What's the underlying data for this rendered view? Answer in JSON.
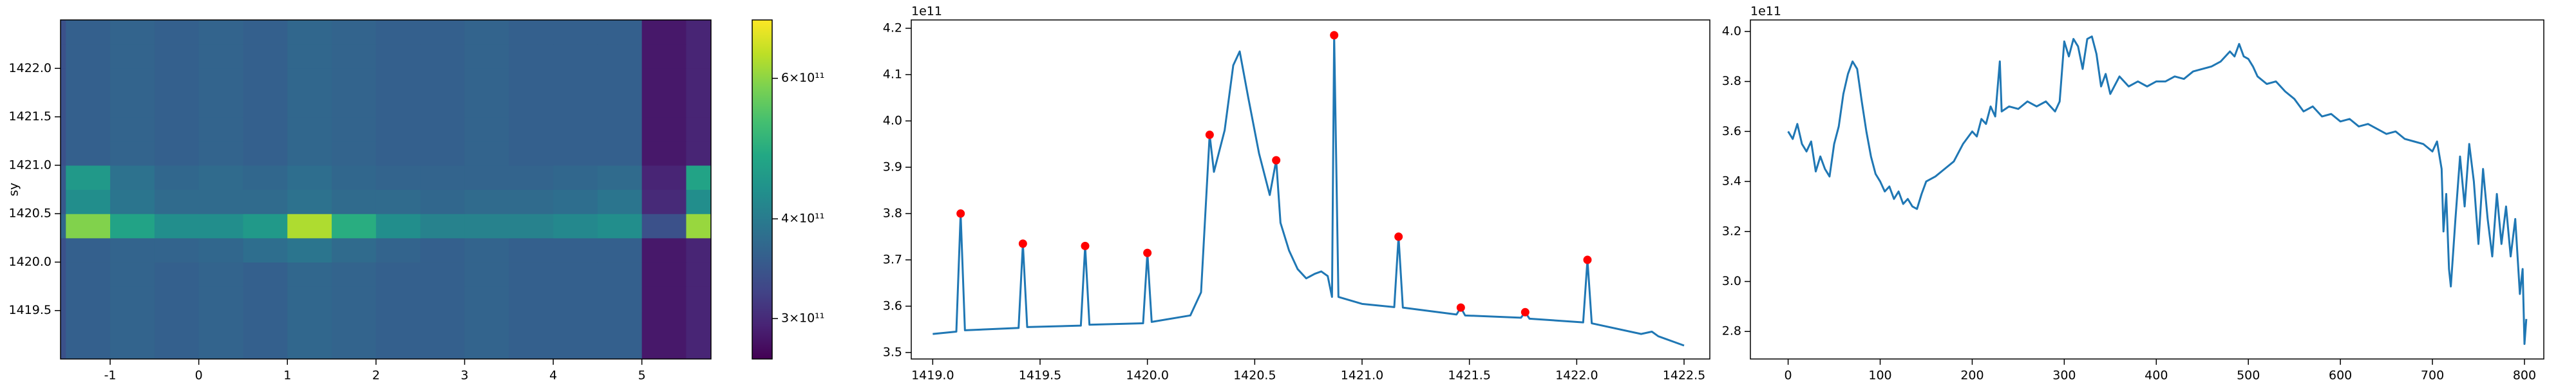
{
  "chart_data": [
    {
      "type": "heatmap",
      "ylabel": "sy",
      "xlim": [
        -1.56,
        5.78
      ],
      "xticks": [
        -1,
        0,
        1,
        2,
        3,
        4,
        5
      ],
      "ylim": [
        1419.0,
        1422.5
      ],
      "yticks": [
        1419.5,
        {
          "value": 1420,
          "label": "1420.0"
        },
        1420.5,
        {
          "value": 1421,
          "label": "1421.0"
        },
        1421.5,
        {
          "value": 1422,
          "label": "1422.0"
        }
      ],
      "colormap": "viridis",
      "x": [
        -1.75,
        -1.25,
        -0.75,
        -0.25,
        0.25,
        0.75,
        1.25,
        1.75,
        2.25,
        2.75,
        3.25,
        3.75,
        4.25,
        4.75,
        5.25,
        5.75
      ],
      "y": [
        1419.125,
        1419.375,
        1419.625,
        1419.875,
        1420.125,
        1420.375,
        1420.625,
        1420.875,
        1421.125,
        1421.375,
        1421.625,
        1421.875,
        1422.125,
        1422.375
      ],
      "z": [
        [
          340000000000.0,
          360000000000.0,
          365000000000.0,
          360000000000.0,
          365000000000.0,
          360000000000.0,
          370000000000.0,
          365000000000.0,
          360000000000.0,
          360000000000.0,
          365000000000.0,
          360000000000.0,
          360000000000.0,
          360000000000.0,
          285000000000.0,
          295000000000.0
        ],
        [
          340000000000.0,
          360000000000.0,
          365000000000.0,
          360000000000.0,
          365000000000.0,
          360000000000.0,
          370000000000.0,
          365000000000.0,
          360000000000.0,
          360000000000.0,
          365000000000.0,
          360000000000.0,
          360000000000.0,
          360000000000.0,
          285000000000.0,
          295000000000.0
        ],
        [
          340000000000.0,
          360000000000.0,
          365000000000.0,
          360000000000.0,
          365000000000.0,
          360000000000.0,
          370000000000.0,
          365000000000.0,
          360000000000.0,
          360000000000.0,
          365000000000.0,
          360000000000.0,
          360000000000.0,
          360000000000.0,
          285000000000.0,
          295000000000.0
        ],
        [
          340000000000.0,
          360000000000.0,
          365000000000.0,
          360000000000.0,
          365000000000.0,
          360000000000.0,
          370000000000.0,
          365000000000.0,
          360000000000.0,
          360000000000.0,
          365000000000.0,
          360000000000.0,
          360000000000.0,
          360000000000.0,
          285000000000.0,
          295000000000.0
        ],
        [
          340000000000.0,
          360000000000.0,
          365000000000.0,
          365000000000.0,
          370000000000.0,
          380000000000.0,
          390000000000.0,
          375000000000.0,
          365000000000.0,
          360000000000.0,
          365000000000.0,
          360000000000.0,
          360000000000.0,
          360000000000.0,
          285000000000.0,
          295000000000.0
        ],
        [
          370000000000.0,
          590000000000.0,
          470000000000.0,
          430000000000.0,
          430000000000.0,
          450000000000.0,
          630000000000.0,
          490000000000.0,
          430000000000.0,
          410000000000.0,
          410000000000.0,
          410000000000.0,
          420000000000.0,
          430000000000.0,
          340000000000.0,
          610000000000.0
        ],
        [
          350000000000.0,
          430000000000.0,
          390000000000.0,
          375000000000.0,
          375000000000.0,
          375000000000.0,
          385000000000.0,
          375000000000.0,
          375000000000.0,
          370000000000.0,
          375000000000.0,
          375000000000.0,
          380000000000.0,
          390000000000.0,
          300000000000.0,
          430000000000.0
        ],
        [
          350000000000.0,
          450000000000.0,
          385000000000.0,
          370000000000.0,
          375000000000.0,
          370000000000.0,
          380000000000.0,
          370000000000.0,
          365000000000.0,
          365000000000.0,
          365000000000.0,
          365000000000.0,
          370000000000.0,
          375000000000.0,
          295000000000.0,
          470000000000.0
        ],
        [
          340000000000.0,
          360000000000.0,
          365000000000.0,
          360000000000.0,
          365000000000.0,
          360000000000.0,
          370000000000.0,
          365000000000.0,
          360000000000.0,
          360000000000.0,
          365000000000.0,
          360000000000.0,
          360000000000.0,
          360000000000.0,
          285000000000.0,
          295000000000.0
        ],
        [
          340000000000.0,
          360000000000.0,
          365000000000.0,
          360000000000.0,
          365000000000.0,
          360000000000.0,
          370000000000.0,
          365000000000.0,
          360000000000.0,
          360000000000.0,
          365000000000.0,
          360000000000.0,
          360000000000.0,
          360000000000.0,
          285000000000.0,
          295000000000.0
        ],
        [
          340000000000.0,
          360000000000.0,
          365000000000.0,
          360000000000.0,
          365000000000.0,
          360000000000.0,
          370000000000.0,
          365000000000.0,
          360000000000.0,
          360000000000.0,
          365000000000.0,
          360000000000.0,
          360000000000.0,
          360000000000.0,
          285000000000.0,
          295000000000.0
        ],
        [
          340000000000.0,
          360000000000.0,
          365000000000.0,
          360000000000.0,
          365000000000.0,
          360000000000.0,
          370000000000.0,
          365000000000.0,
          360000000000.0,
          360000000000.0,
          365000000000.0,
          360000000000.0,
          360000000000.0,
          360000000000.0,
          285000000000.0,
          295000000000.0
        ],
        [
          340000000000.0,
          360000000000.0,
          365000000000.0,
          360000000000.0,
          365000000000.0,
          360000000000.0,
          370000000000.0,
          365000000000.0,
          360000000000.0,
          360000000000.0,
          365000000000.0,
          360000000000.0,
          360000000000.0,
          360000000000.0,
          285000000000.0,
          295000000000.0
        ],
        [
          340000000000.0,
          360000000000.0,
          365000000000.0,
          360000000000.0,
          365000000000.0,
          360000000000.0,
          370000000000.0,
          365000000000.0,
          360000000000.0,
          360000000000.0,
          365000000000.0,
          360000000000.0,
          360000000000.0,
          360000000000.0,
          285000000000.0,
          295000000000.0
        ]
      ],
      "colorbar": {
        "scale": "log",
        "clim": [
          267000000000.0,
          710000000000.0
        ],
        "ticks": [
          {
            "value": 300000000000.0,
            "label": "3×10¹¹"
          },
          {
            "value": 400000000000.0,
            "label": "4×10¹¹"
          },
          {
            "value": 600000000000.0,
            "label": "6×10¹¹"
          }
        ]
      }
    },
    {
      "type": "line",
      "offset_text": "1e11",
      "xlim": [
        1418.9,
        1422.62
      ],
      "xticks": [
        {
          "value": 1419,
          "label": "1419.0"
        },
        1419.5,
        {
          "value": 1420,
          "label": "1420.0"
        },
        1420.5,
        {
          "value": 1421,
          "label": "1421.0"
        },
        1421.5,
        {
          "value": 1422,
          "label": "1422.0"
        },
        1422.5
      ],
      "ylim": [
        3.486,
        4.218
      ],
      "yticks": [
        3.5,
        3.6,
        3.7,
        3.8,
        3.9,
        {
          "value": 4,
          "label": "4.0"
        },
        4.1,
        4.2
      ],
      "x": [
        1419.0,
        1419.11,
        1419.13,
        1419.15,
        1419.4,
        1419.42,
        1419.44,
        1419.69,
        1419.71,
        1419.73,
        1419.98,
        1420.0,
        1420.02,
        1420.2,
        1420.25,
        1420.29,
        1420.31,
        1420.36,
        1420.4,
        1420.43,
        1420.47,
        1420.52,
        1420.57,
        1420.6,
        1420.62,
        1420.66,
        1420.7,
        1420.74,
        1420.78,
        1420.81,
        1420.84,
        1420.86,
        1420.87,
        1420.89,
        1421.0,
        1421.15,
        1421.17,
        1421.19,
        1421.44,
        1421.46,
        1421.48,
        1421.74,
        1421.76,
        1421.78,
        1422.03,
        1422.05,
        1422.07,
        1422.3,
        1422.35,
        1422.38,
        1422.5
      ],
      "series": [
        {
          "color": "#1f77b4",
          "values": [
            3.54,
            3.545,
            3.8,
            3.548,
            3.553,
            3.735,
            3.555,
            3.558,
            3.73,
            3.56,
            3.563,
            3.715,
            3.566,
            3.58,
            3.63,
            3.97,
            3.89,
            3.98,
            4.12,
            4.15,
            4.05,
            3.93,
            3.84,
            3.915,
            3.78,
            3.72,
            3.68,
            3.66,
            3.67,
            3.675,
            3.665,
            3.62,
            4.185,
            3.62,
            3.605,
            3.598,
            3.75,
            3.597,
            3.582,
            3.597,
            3.58,
            3.575,
            3.587,
            3.573,
            3.565,
            3.7,
            3.563,
            3.54,
            3.545,
            3.535,
            3.515
          ]
        }
      ],
      "markers": {
        "color": "#ff0000",
        "x": [
          1419.13,
          1419.42,
          1419.71,
          1420.0,
          1420.29,
          1420.6,
          1420.87,
          1421.17,
          1421.46,
          1421.76,
          1422.05
        ],
        "values": [
          3.8,
          3.735,
          3.73,
          3.715,
          3.97,
          3.915,
          4.185,
          3.75,
          3.597,
          3.587,
          3.7
        ]
      }
    },
    {
      "type": "line",
      "offset_text": "1e11",
      "xlim": [
        -41,
        821
      ],
      "xticks": [
        0,
        100,
        200,
        300,
        400,
        500,
        600,
        700,
        800
      ],
      "ylim": [
        2.69,
        4.046
      ],
      "yticks": [
        2.8,
        {
          "value": 3,
          "label": "3.0"
        },
        3.2,
        3.4,
        3.6,
        3.8,
        {
          "value": 4,
          "label": "4.0"
        }
      ],
      "x": [
        0,
        5,
        10,
        15,
        20,
        25,
        30,
        35,
        40,
        45,
        50,
        55,
        60,
        65,
        70,
        75,
        80,
        85,
        90,
        95,
        100,
        105,
        110,
        115,
        120,
        125,
        130,
        135,
        140,
        145,
        150,
        160,
        170,
        180,
        190,
        200,
        205,
        210,
        215,
        220,
        225,
        230,
        232,
        240,
        250,
        260,
        270,
        280,
        290,
        295,
        300,
        305,
        310,
        315,
        320,
        325,
        330,
        335,
        340,
        345,
        350,
        360,
        370,
        380,
        390,
        400,
        410,
        420,
        430,
        440,
        450,
        460,
        470,
        480,
        485,
        490,
        495,
        500,
        505,
        510,
        520,
        530,
        540,
        550,
        560,
        570,
        580,
        590,
        600,
        610,
        620,
        630,
        640,
        650,
        660,
        670,
        680,
        690,
        700,
        705,
        710,
        712,
        715,
        718,
        720,
        725,
        730,
        735,
        740,
        745,
        750,
        755,
        760,
        765,
        770,
        775,
        780,
        785,
        790,
        795,
        798,
        800,
        802
      ],
      "series": [
        {
          "color": "#1f77b4",
          "values": [
            3.6,
            3.57,
            3.63,
            3.55,
            3.52,
            3.56,
            3.44,
            3.5,
            3.45,
            3.42,
            3.55,
            3.62,
            3.75,
            3.83,
            3.88,
            3.85,
            3.72,
            3.6,
            3.5,
            3.43,
            3.4,
            3.36,
            3.38,
            3.33,
            3.36,
            3.31,
            3.33,
            3.3,
            3.29,
            3.35,
            3.4,
            3.42,
            3.45,
            3.48,
            3.55,
            3.6,
            3.58,
            3.65,
            3.63,
            3.7,
            3.66,
            3.88,
            3.68,
            3.7,
            3.69,
            3.72,
            3.7,
            3.72,
            3.68,
            3.72,
            3.96,
            3.9,
            3.97,
            3.94,
            3.85,
            3.97,
            3.98,
            3.91,
            3.78,
            3.83,
            3.75,
            3.82,
            3.78,
            3.8,
            3.78,
            3.8,
            3.8,
            3.82,
            3.81,
            3.84,
            3.85,
            3.86,
            3.88,
            3.92,
            3.9,
            3.95,
            3.9,
            3.89,
            3.86,
            3.82,
            3.79,
            3.8,
            3.76,
            3.73,
            3.68,
            3.7,
            3.66,
            3.67,
            3.64,
            3.65,
            3.62,
            3.63,
            3.61,
            3.59,
            3.6,
            3.57,
            3.56,
            3.55,
            3.52,
            3.56,
            3.45,
            3.2,
            3.35,
            3.05,
            2.98,
            3.25,
            3.5,
            3.3,
            3.55,
            3.4,
            3.15,
            3.45,
            3.25,
            3.1,
            3.35,
            3.15,
            3.3,
            3.1,
            3.25,
            2.95,
            3.05,
            2.75,
            2.85
          ]
        }
      ]
    }
  ]
}
